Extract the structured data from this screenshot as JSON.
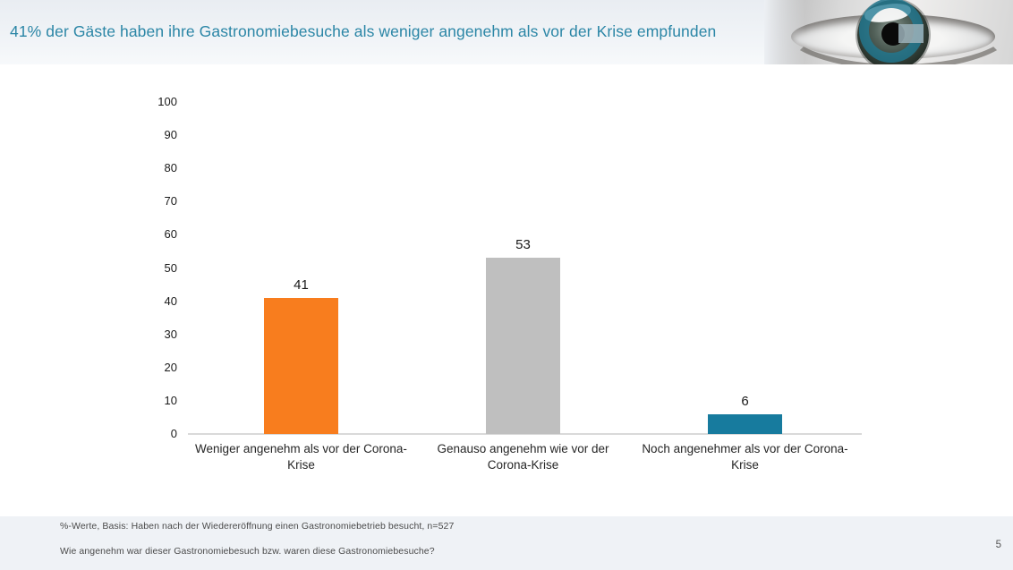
{
  "header": {
    "title": "41% der Gäste haben ihre Gastronomiebesuche als weniger angenehm als vor der Krise empfunden",
    "title_color": "#2B86A6",
    "logo_icon": "eye-photo-with-teal-ring-logo"
  },
  "chart_data": {
    "type": "bar",
    "title": "",
    "categories": [
      "Weniger angenehm als vor der Corona-Krise",
      "Genauso angenehm wie vor der Corona-Krise",
      "Noch angenehmer als vor der Corona-Krise"
    ],
    "values": [
      41,
      53,
      6
    ],
    "bar_colors": [
      "#F87D1E",
      "#BFBFBF",
      "#177B9E"
    ],
    "xlabel": "",
    "ylabel": "",
    "ylim": [
      0,
      100
    ],
    "yticks": [
      0,
      10,
      20,
      30,
      40,
      50,
      60,
      70,
      80,
      90,
      100
    ],
    "grid": false,
    "legend": "none",
    "value_labels_shown": true,
    "axis_line_color": "#D9D9D9"
  },
  "footer": {
    "basis_note": "%-Werte, Basis: Haben nach der Wiedereröffnung einen Gastronomiebetrieb besucht, n=527",
    "question": "Wie angenehm war dieser Gastronomiebesuch bzw. waren diese Gastronomiebesuche?",
    "page_number": "5"
  }
}
